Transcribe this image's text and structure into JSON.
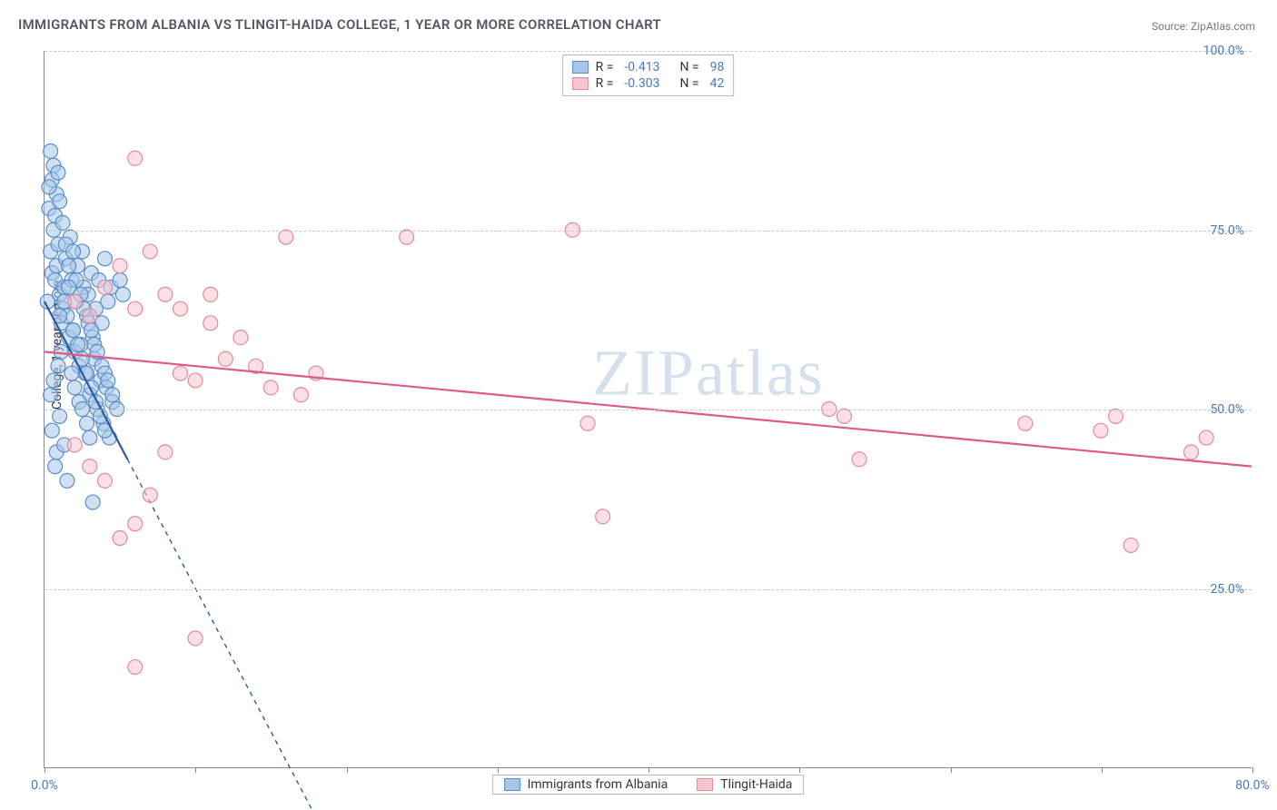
{
  "title": "IMMIGRANTS FROM ALBANIA VS TLINGIT-HAIDA COLLEGE, 1 YEAR OR MORE CORRELATION CHART",
  "source": "Source: ZipAtlas.com",
  "y_axis_label": "College, 1 year or more",
  "watermark": "ZIPatlas",
  "chart": {
    "type": "scatter",
    "xlim": [
      0,
      80
    ],
    "ylim": [
      0,
      100
    ],
    "x_ticks": [
      0,
      10,
      20,
      30,
      40,
      50,
      60,
      70,
      80
    ],
    "x_tick_labels": {
      "0": "0.0%",
      "80": "80.0%"
    },
    "y_gridlines": [
      25,
      50,
      75,
      100
    ],
    "y_tick_labels": {
      "25": "25.0%",
      "50": "50.0%",
      "75": "75.0%",
      "100": "100.0%"
    },
    "background_color": "#ffffff",
    "grid_color": "#c8c8d0",
    "axis_color": "#888899",
    "label_color": "#4a7ab8",
    "marker_radius": 8,
    "marker_opacity": 0.55,
    "series": [
      {
        "name": "Immigrants from Albania",
        "fill_color": "#a8c6ea",
        "stroke_color": "#5a8dc8",
        "line_color": "#2a5aa0",
        "r_value": "-0.413",
        "n_value": "98",
        "trend": {
          "x1": 0,
          "y1": 65,
          "x2": 5.5,
          "y2": 43,
          "solid_until_x": 5.5,
          "dash_to_x": 18,
          "dash_to_y": -7
        },
        "points": [
          [
            0.2,
            65
          ],
          [
            0.3,
            78
          ],
          [
            0.4,
            72
          ],
          [
            0.5,
            69
          ],
          [
            0.6,
            75
          ],
          [
            0.7,
            68
          ],
          [
            0.8,
            70
          ],
          [
            0.9,
            73
          ],
          [
            1.0,
            66
          ],
          [
            1.1,
            62
          ],
          [
            1.2,
            64
          ],
          [
            1.3,
            67
          ],
          [
            1.4,
            71
          ],
          [
            1.5,
            63
          ],
          [
            1.6,
            60
          ],
          [
            1.7,
            74
          ],
          [
            1.8,
            68
          ],
          [
            1.9,
            61
          ],
          [
            2.0,
            58
          ],
          [
            2.1,
            65
          ],
          [
            2.2,
            70
          ],
          [
            2.3,
            56
          ],
          [
            2.4,
            59
          ],
          [
            2.5,
            72
          ],
          [
            2.6,
            67
          ],
          [
            2.7,
            55
          ],
          [
            2.8,
            63
          ],
          [
            2.9,
            66
          ],
          [
            3.0,
            52
          ],
          [
            3.1,
            69
          ],
          [
            3.2,
            60
          ],
          [
            3.3,
            57
          ],
          [
            3.4,
            64
          ],
          [
            3.5,
            50
          ],
          [
            3.6,
            68
          ],
          [
            3.7,
            54
          ],
          [
            3.8,
            62
          ],
          [
            3.9,
            48
          ],
          [
            4.0,
            71
          ],
          [
            4.1,
            53
          ],
          [
            4.2,
            65
          ],
          [
            4.3,
            46
          ],
          [
            4.4,
            67
          ],
          [
            4.5,
            51
          ],
          [
            0.4,
            86
          ],
          [
            0.6,
            84
          ],
          [
            0.5,
            82
          ],
          [
            0.8,
            80
          ],
          [
            0.3,
            81
          ],
          [
            1.0,
            79
          ],
          [
            0.7,
            77
          ],
          [
            1.2,
            76
          ],
          [
            0.9,
            83
          ],
          [
            1.4,
            73
          ],
          [
            0.5,
            47
          ],
          [
            0.8,
            44
          ],
          [
            1.0,
            49
          ],
          [
            1.3,
            45
          ],
          [
            0.7,
            42
          ],
          [
            1.5,
            40
          ],
          [
            0.4,
            52
          ],
          [
            0.6,
            54
          ],
          [
            0.9,
            56
          ],
          [
            1.1,
            58
          ],
          [
            1.8,
            55
          ],
          [
            2.0,
            53
          ],
          [
            2.3,
            51
          ],
          [
            2.5,
            50
          ],
          [
            2.8,
            48
          ],
          [
            3.0,
            46
          ],
          [
            1.6,
            70
          ],
          [
            1.9,
            72
          ],
          [
            2.1,
            68
          ],
          [
            2.4,
            66
          ],
          [
            2.6,
            64
          ],
          [
            2.9,
            62
          ],
          [
            3.1,
            61
          ],
          [
            3.3,
            59
          ],
          [
            3.5,
            58
          ],
          [
            3.8,
            56
          ],
          [
            4.0,
            55
          ],
          [
            4.2,
            54
          ],
          [
            4.5,
            52
          ],
          [
            4.8,
            50
          ],
          [
            5.0,
            68
          ],
          [
            5.2,
            66
          ],
          [
            3.2,
            37
          ],
          [
            1.0,
            63
          ],
          [
            1.3,
            65
          ],
          [
            1.6,
            67
          ],
          [
            1.9,
            61
          ],
          [
            2.2,
            59
          ],
          [
            2.5,
            57
          ],
          [
            2.8,
            55
          ],
          [
            3.1,
            53
          ],
          [
            3.4,
            51
          ],
          [
            3.7,
            49
          ],
          [
            4.0,
            47
          ]
        ]
      },
      {
        "name": "Tlingit-Haida",
        "fill_color": "#f5c6d0",
        "stroke_color": "#e08aa0",
        "line_color": "#e05a85",
        "r_value": "-0.303",
        "n_value": "42",
        "trend": {
          "x1": 0,
          "y1": 58,
          "x2": 80,
          "y2": 42,
          "solid_until_x": 80
        },
        "points": [
          [
            2,
            65
          ],
          [
            3,
            63
          ],
          [
            4,
            67
          ],
          [
            5,
            70
          ],
          [
            6,
            64
          ],
          [
            7,
            72
          ],
          [
            8,
            66
          ],
          [
            6,
            85
          ],
          [
            9,
            55
          ],
          [
            10,
            54
          ],
          [
            11,
            62
          ],
          [
            12,
            57
          ],
          [
            13,
            60
          ],
          [
            14,
            56
          ],
          [
            15,
            53
          ],
          [
            16,
            74
          ],
          [
            17,
            52
          ],
          [
            18,
            55
          ],
          [
            24,
            74
          ],
          [
            35,
            75
          ],
          [
            36,
            48
          ],
          [
            37,
            35
          ],
          [
            52,
            50
          ],
          [
            53,
            49
          ],
          [
            54,
            43
          ],
          [
            65,
            48
          ],
          [
            70,
            47
          ],
          [
            71,
            49
          ],
          [
            72,
            31
          ],
          [
            76,
            44
          ],
          [
            77,
            46
          ],
          [
            5,
            32
          ],
          [
            6,
            34
          ],
          [
            8,
            44
          ],
          [
            10,
            18
          ],
          [
            2,
            45
          ],
          [
            3,
            42
          ],
          [
            4,
            40
          ],
          [
            7,
            38
          ],
          [
            6,
            14
          ],
          [
            9,
            64
          ],
          [
            11,
            66
          ]
        ]
      }
    ]
  },
  "upper_legend": [
    {
      "swatch_fill": "#a8c6ea",
      "swatch_stroke": "#5a8dc8",
      "r_label": "R =",
      "r_value": "-0.413",
      "n_label": "N =",
      "n_value": "98"
    },
    {
      "swatch_fill": "#f5c6d0",
      "swatch_stroke": "#e08aa0",
      "r_label": "R =",
      "r_value": "-0.303",
      "n_label": "N =",
      "n_value": "42"
    }
  ],
  "lower_legend": [
    {
      "swatch_fill": "#a8c6ea",
      "swatch_stroke": "#5a8dc8",
      "label": "Immigrants from Albania"
    },
    {
      "swatch_fill": "#f5c6d0",
      "swatch_stroke": "#e08aa0",
      "label": "Tlingit-Haida"
    }
  ]
}
